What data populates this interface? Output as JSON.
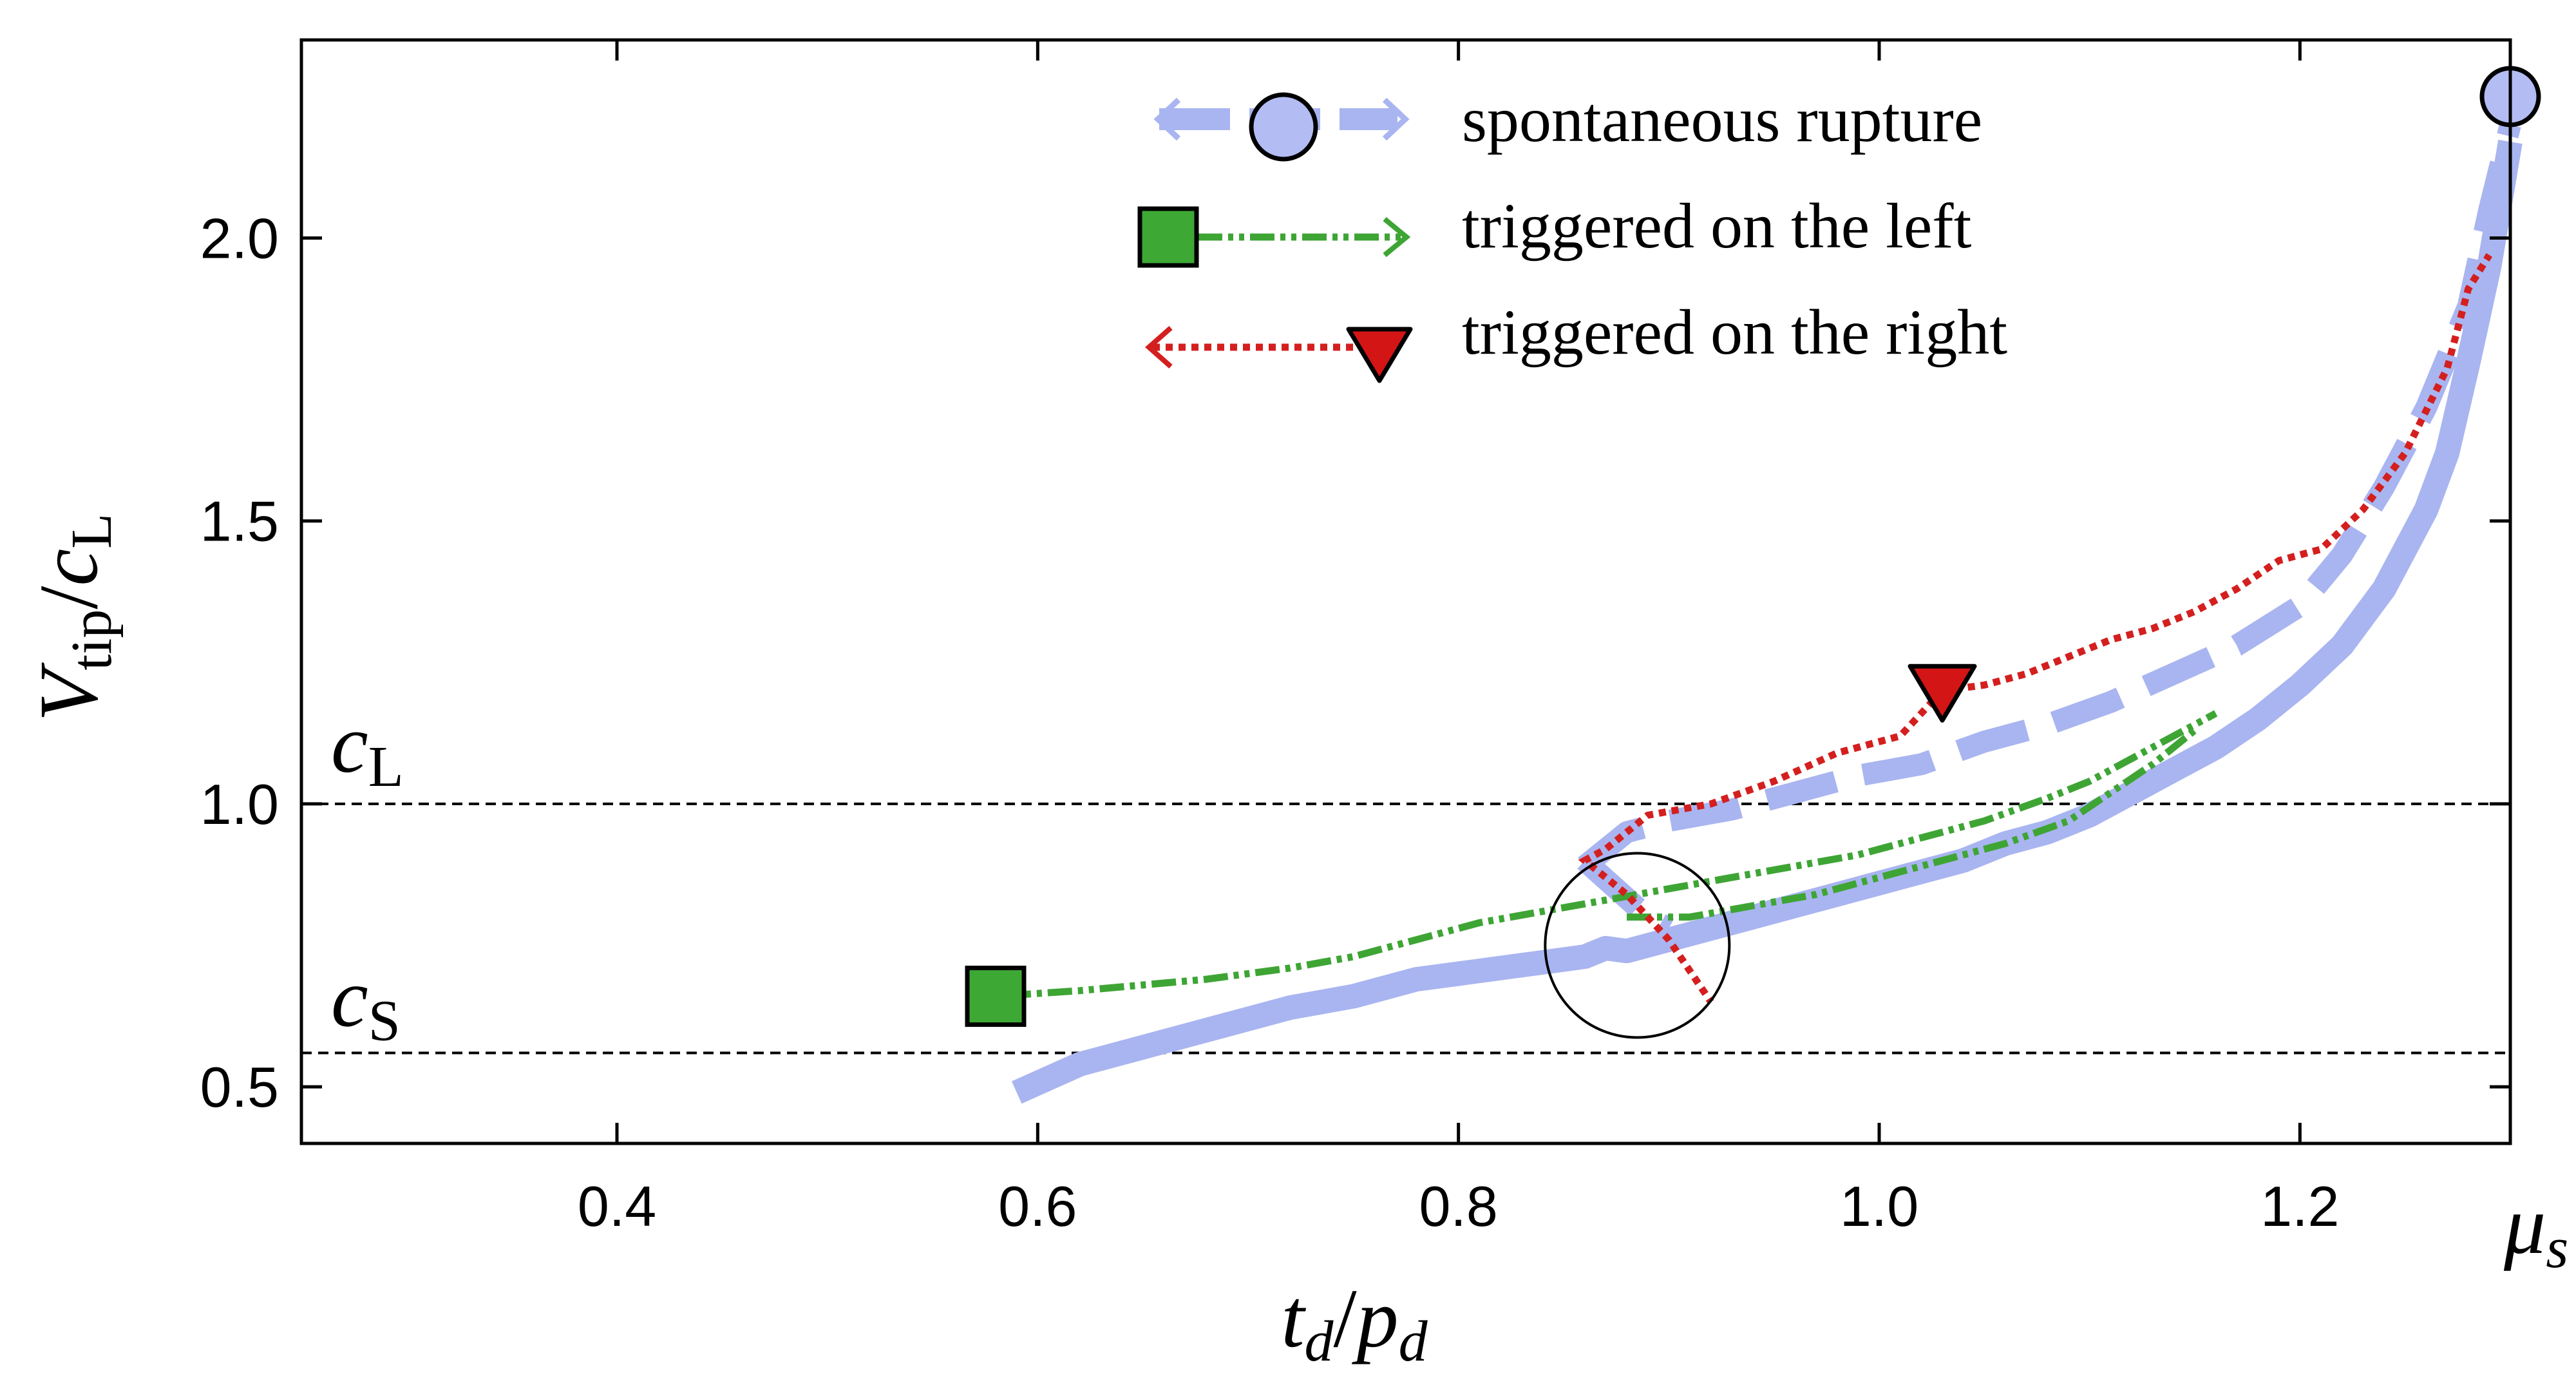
{
  "chart_data": {
    "type": "line",
    "xlim": [
      0.25,
      1.3
    ],
    "ylim": [
      0.4,
      2.35
    ],
    "x_ticks": [
      0.4,
      0.6,
      0.8,
      1.0,
      1.2
    ],
    "x_tick_labels": [
      "0.4",
      "0.6",
      "0.8",
      "1.0",
      "1.2"
    ],
    "y_ticks": [
      0.5,
      1.0,
      1.5,
      2.0
    ],
    "y_tick_labels": [
      "0.5",
      "1.0",
      "1.5",
      "2.0"
    ],
    "x_end_label": {
      "main": "μ",
      "sub": "s"
    },
    "xlabel": {
      "t": "t",
      "t_sub": "d",
      "slash": "/",
      "p": "p",
      "p_sub": "d"
    },
    "ylabel": {
      "v": "V",
      "v_sub": "tip",
      "slash": "/",
      "c": "c",
      "c_sub": "L"
    },
    "reference_lines": [
      {
        "y": 1.0,
        "label": "c",
        "label_sub": "L"
      },
      {
        "y": 0.56,
        "label": "c",
        "label_sub": "S"
      }
    ],
    "grid": false,
    "legend_position": "top-right",
    "series": [
      {
        "name": "spontaneous rupture",
        "color": "#a9b5f0",
        "marker": "circle",
        "marker_color": "#b3bdf4",
        "branches": [
          {
            "style": "solid",
            "points": [
              [
                0.59,
                0.49
              ],
              [
                0.62,
                0.54
              ],
              [
                0.65,
                0.57
              ],
              [
                0.68,
                0.6
              ],
              [
                0.72,
                0.64
              ],
              [
                0.75,
                0.66
              ],
              [
                0.78,
                0.69
              ],
              [
                0.8,
                0.7
              ],
              [
                0.82,
                0.71
              ],
              [
                0.84,
                0.72
              ],
              [
                0.86,
                0.73
              ],
              [
                0.87,
                0.745
              ],
              [
                0.88,
                0.74
              ],
              [
                0.9,
                0.76
              ],
              [
                0.92,
                0.78
              ],
              [
                0.94,
                0.8
              ],
              [
                0.96,
                0.82
              ],
              [
                0.98,
                0.84
              ],
              [
                1.0,
                0.86
              ],
              [
                1.02,
                0.88
              ],
              [
                1.04,
                0.9
              ],
              [
                1.06,
                0.93
              ],
              [
                1.08,
                0.95
              ],
              [
                1.1,
                0.98
              ],
              [
                1.12,
                1.02
              ],
              [
                1.14,
                1.06
              ],
              [
                1.16,
                1.1
              ],
              [
                1.18,
                1.15
              ],
              [
                1.2,
                1.21
              ],
              [
                1.22,
                1.28
              ],
              [
                1.24,
                1.38
              ],
              [
                1.26,
                1.52
              ],
              [
                1.27,
                1.62
              ],
              [
                1.28,
                1.78
              ],
              [
                1.29,
                1.95
              ],
              [
                1.3,
                2.17
              ]
            ]
          },
          {
            "style": "dashed",
            "points": [
              [
                0.86,
                0.89
              ],
              [
                0.88,
                0.95
              ],
              [
                0.9,
                0.97
              ],
              [
                0.93,
                0.99
              ],
              [
                0.96,
                1.02
              ],
              [
                0.99,
                1.05
              ],
              [
                1.02,
                1.07
              ],
              [
                1.05,
                1.11
              ],
              [
                1.08,
                1.14
              ],
              [
                1.11,
                1.18
              ],
              [
                1.14,
                1.23
              ],
              [
                1.17,
                1.28
              ],
              [
                1.2,
                1.35
              ],
              [
                1.22,
                1.44
              ],
              [
                1.24,
                1.56
              ],
              [
                1.26,
                1.7
              ],
              [
                1.28,
                1.88
              ],
              [
                1.29,
                2.05
              ],
              [
                1.3,
                2.2
              ]
            ]
          },
          {
            "style": "dashed",
            "points": [
              [
                0.86,
                0.9
              ],
              [
                0.875,
                0.85
              ],
              [
                0.89,
                0.8
              ],
              [
                0.9,
                0.78
              ]
            ]
          }
        ],
        "marker_point": [
          1.3,
          2.25
        ]
      },
      {
        "name": "triggered on the left",
        "color": "#3ea535",
        "marker": "square",
        "marker_color": "#3da834",
        "points": [
          [
            0.58,
            0.66
          ],
          [
            0.62,
            0.67
          ],
          [
            0.65,
            0.68
          ],
          [
            0.68,
            0.69
          ],
          [
            0.72,
            0.71
          ],
          [
            0.75,
            0.73
          ],
          [
            0.78,
            0.76
          ],
          [
            0.81,
            0.79
          ],
          [
            0.84,
            0.81
          ],
          [
            0.87,
            0.83
          ],
          [
            0.9,
            0.85
          ],
          [
            0.93,
            0.87
          ],
          [
            0.96,
            0.89
          ],
          [
            0.99,
            0.91
          ],
          [
            1.02,
            0.94
          ],
          [
            1.05,
            0.97
          ],
          [
            1.08,
            1.01
          ],
          [
            1.1,
            1.04
          ],
          [
            1.12,
            1.08
          ],
          [
            1.14,
            1.12
          ],
          [
            1.16,
            1.16
          ]
        ],
        "branch2": [
          [
            0.88,
            0.8
          ],
          [
            0.91,
            0.8
          ],
          [
            0.94,
            0.82
          ],
          [
            0.97,
            0.84
          ],
          [
            1.0,
            0.87
          ],
          [
            1.03,
            0.9
          ],
          [
            1.06,
            0.93
          ],
          [
            1.09,
            0.97
          ],
          [
            1.11,
            1.02
          ],
          [
            1.13,
            1.07
          ],
          [
            1.15,
            1.13
          ]
        ],
        "marker_point": [
          0.58,
          0.66
        ]
      },
      {
        "name": "triggered on the right",
        "color": "#d41f1f",
        "marker": "triangle-down",
        "marker_color": "#d41515",
        "points": [
          [
            1.03,
            1.2
          ],
          [
            1.05,
            1.21
          ],
          [
            1.07,
            1.23
          ],
          [
            1.09,
            1.26
          ],
          [
            1.11,
            1.29
          ],
          [
            1.13,
            1.31
          ],
          [
            1.15,
            1.34
          ],
          [
            1.17,
            1.38
          ],
          [
            1.19,
            1.43
          ],
          [
            1.21,
            1.45
          ],
          [
            1.23,
            1.52
          ],
          [
            1.25,
            1.62
          ],
          [
            1.27,
            1.77
          ],
          [
            1.28,
            1.91
          ],
          [
            1.29,
            1.97
          ]
        ],
        "branch2": [
          [
            1.03,
            1.2
          ],
          [
            1.01,
            1.12
          ],
          [
            0.98,
            1.09
          ],
          [
            0.95,
            1.04
          ],
          [
            0.92,
            1.0
          ],
          [
            0.89,
            0.98
          ],
          [
            0.87,
            0.92
          ],
          [
            0.86,
            0.9
          ],
          [
            0.88,
            0.84
          ],
          [
            0.9,
            0.76
          ],
          [
            0.92,
            0.65
          ]
        ],
        "marker_point": [
          1.03,
          1.2
        ]
      }
    ],
    "annotations": [
      {
        "type": "circle",
        "x": 0.885,
        "y": 0.75
      }
    ]
  }
}
